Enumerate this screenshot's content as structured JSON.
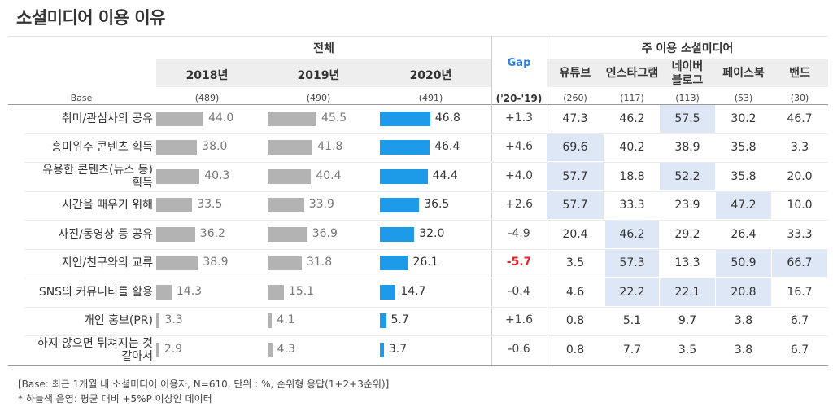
{
  "title": "소셜미디어 이용 이유",
  "header": {
    "total_label": "전체",
    "gap_label": "Gap",
    "gap_sub": "('20-'19)",
    "sm_label": "주 이용 소셜미디어",
    "base_label": "Base",
    "years": [
      "2018년",
      "2019년",
      "2020년"
    ],
    "year_bases": [
      "(489)",
      "(490)",
      "(491)"
    ],
    "platforms": [
      "유튜브",
      "인스타그램",
      "네이버\n블로그",
      "페이스북",
      "밴드"
    ],
    "platform_bases": [
      "(260)",
      "(117)",
      "(113)",
      "(53)",
      "(30)"
    ]
  },
  "colors": {
    "grey_bar": "#b3b3b3",
    "blue_bar": "#1e9be8",
    "highlight": "#dde7f5",
    "gap_neg_strong": "#e3242b",
    "gap_title": "#2f7fe0"
  },
  "chart_data": {
    "type": "bar",
    "title": "소셜미디어 이용 이유",
    "categories": [
      "취미/관심사의 공유",
      "흥미위주 콘텐츠 획득",
      "유용한 콘텐츠(뉴스 등)\n획득",
      "시간을 때우기 위해",
      "사진/동영상 등 공유",
      "지인/친구와의 교류",
      "SNS의 커뮤니티를 활용",
      "개인 홍보(PR)",
      "하지 않으면 뒤쳐지는 것\n같아서"
    ],
    "series": [
      {
        "name": "2018년",
        "values": [
          44.0,
          38.0,
          40.3,
          33.5,
          36.2,
          38.9,
          14.3,
          3.3,
          2.9
        ]
      },
      {
        "name": "2019년",
        "values": [
          45.5,
          41.8,
          40.4,
          33.9,
          36.9,
          31.8,
          15.1,
          4.1,
          4.3
        ]
      },
      {
        "name": "2020년",
        "values": [
          46.8,
          46.4,
          44.4,
          36.5,
          32.0,
          26.1,
          14.7,
          5.7,
          3.7
        ]
      }
    ],
    "xlim": [
      0,
      100
    ],
    "gap": [
      "+1.3",
      "+4.6",
      "+4.0",
      "+2.6",
      "-4.9",
      "-5.7",
      "-0.4",
      "+1.6",
      "-0.6"
    ],
    "gap_emphasis": [
      false,
      false,
      false,
      false,
      false,
      true,
      false,
      false,
      false
    ],
    "platform_table": {
      "columns": [
        "유튜브",
        "인스타그램",
        "네이버 블로그",
        "페이스북",
        "밴드"
      ],
      "rows": [
        [
          "47.3",
          "46.2",
          "57.5",
          "30.2",
          "46.7"
        ],
        [
          "69.6",
          "40.2",
          "38.9",
          "35.8",
          "3.3"
        ],
        [
          "57.7",
          "18.8",
          "52.2",
          "35.8",
          "20.0"
        ],
        [
          "57.7",
          "33.3",
          "23.9",
          "47.2",
          "10.0"
        ],
        [
          "20.4",
          "46.2",
          "29.2",
          "26.4",
          "33.3"
        ],
        [
          "3.5",
          "57.3",
          "13.3",
          "50.9",
          "66.7"
        ],
        [
          "4.6",
          "22.2",
          "22.1",
          "20.8",
          "16.7"
        ],
        [
          "0.8",
          "5.1",
          "9.7",
          "3.8",
          "6.7"
        ],
        [
          "0.8",
          "7.7",
          "3.5",
          "3.8",
          "6.7"
        ]
      ],
      "highlight": [
        [
          false,
          false,
          true,
          false,
          false
        ],
        [
          true,
          false,
          false,
          false,
          false
        ],
        [
          true,
          false,
          true,
          false,
          false
        ],
        [
          true,
          false,
          false,
          true,
          false
        ],
        [
          false,
          true,
          false,
          false,
          false
        ],
        [
          false,
          true,
          false,
          true,
          true
        ],
        [
          false,
          true,
          true,
          true,
          false
        ],
        [
          false,
          false,
          false,
          false,
          false
        ],
        [
          false,
          false,
          false,
          false,
          false
        ]
      ]
    }
  },
  "footnotes": [
    "[Base: 최근 1개월 내 소셜미디어 이용자, N=610, 단위 : %, 순위형 응답(1+2+3순위)]",
    "* 하늘색 음영: 평균 대비 +5%P 이상인 데이터"
  ]
}
